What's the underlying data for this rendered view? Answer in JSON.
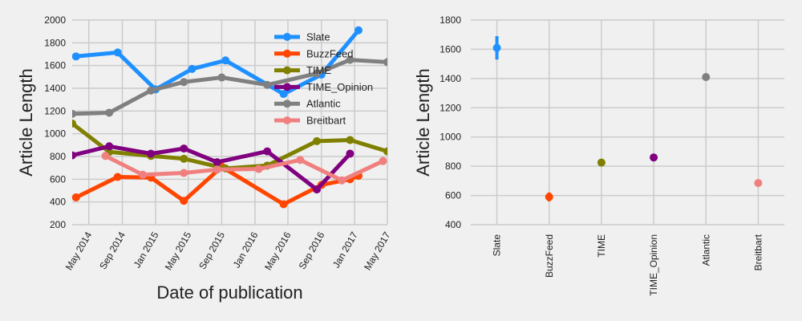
{
  "chart_data": [
    {
      "type": "line",
      "title": "",
      "xlabel": "Date of publication",
      "ylabel": "Article Length",
      "ylim": [
        200,
        2000
      ],
      "xlim": [
        "2014-03-01",
        "2017-05-01"
      ],
      "x_tick_labels": [
        "May 2014",
        "Sep 2014",
        "Jan 2015",
        "May 2015",
        "Sep 2015",
        "Jan 2016",
        "May 2016",
        "Sep 2016",
        "Jan 2017",
        "May 2017"
      ],
      "x_tick_dates": [
        "2014-05-01",
        "2014-09-01",
        "2015-01-01",
        "2015-05-01",
        "2015-09-01",
        "2016-01-01",
        "2016-05-01",
        "2016-09-01",
        "2017-01-01",
        "2017-05-01"
      ],
      "y_ticks": [
        200,
        400,
        600,
        800,
        1000,
        1200,
        1400,
        1600,
        1800,
        2000
      ],
      "grid": true,
      "legend_position": "top-right",
      "series": [
        {
          "name": "Slate",
          "color": "#1e90ff",
          "markers": true,
          "x": [
            "2014-03-15",
            "2014-08-15",
            "2015-01-01",
            "2015-05-15",
            "2015-09-15",
            "2016-04-15",
            "2016-09-01",
            "2017-01-15"
          ],
          "y": [
            1680,
            1715,
            1390,
            1570,
            1645,
            1350,
            1520,
            1910
          ]
        },
        {
          "name": "BuzzFeed",
          "color": "#ff4500",
          "markers": true,
          "x": [
            "2014-03-15",
            "2014-08-15",
            "2014-12-15",
            "2015-04-15",
            "2015-09-01",
            "2016-04-15",
            "2016-09-01",
            "2016-12-15",
            "2017-01-15"
          ],
          "y": [
            440,
            620,
            615,
            410,
            710,
            380,
            550,
            600,
            630
          ]
        },
        {
          "name": "TIME",
          "color": "#808000",
          "markers": true,
          "x": [
            "2014-03-01",
            "2014-07-15",
            "2014-12-15",
            "2015-04-15",
            "2015-09-15",
            "2016-02-15",
            "2016-08-15",
            "2016-12-15",
            "2017-05-01"
          ],
          "y": [
            1090,
            840,
            805,
            780,
            695,
            720,
            935,
            945,
            845
          ]
        },
        {
          "name": "TIME_Opinion",
          "color": "#800080",
          "markers": true,
          "x": [
            "2014-03-01",
            "2014-07-15",
            "2014-12-15",
            "2015-04-15",
            "2015-08-15",
            "2016-02-15",
            "2016-08-15",
            "2016-12-15"
          ],
          "y": [
            810,
            890,
            825,
            870,
            750,
            845,
            510,
            825
          ]
        },
        {
          "name": "Atlantic",
          "color": "#808080",
          "markers": true,
          "x": [
            "2014-03-01",
            "2014-07-15",
            "2014-12-15",
            "2015-04-15",
            "2015-09-01",
            "2016-02-15",
            "2016-08-15",
            "2016-12-15",
            "2017-05-01"
          ],
          "y": [
            1175,
            1185,
            1380,
            1455,
            1495,
            1430,
            1530,
            1650,
            1630
          ]
        },
        {
          "name": "Breitbart",
          "color": "#f08080",
          "markers": true,
          "x": [
            "2014-07-01",
            "2014-11-15",
            "2015-04-15",
            "2015-08-15",
            "2016-01-15",
            "2016-06-15",
            "2016-11-15",
            "2017-04-15"
          ],
          "y": [
            805,
            640,
            655,
            685,
            690,
            770,
            590,
            760
          ]
        }
      ]
    },
    {
      "type": "scatter",
      "title": "",
      "xlabel": "",
      "ylabel": "Article Length",
      "ylim": [
        400,
        1800
      ],
      "y_ticks": [
        400,
        600,
        800,
        1000,
        1200,
        1400,
        1600,
        1800
      ],
      "grid": true,
      "categories": [
        "Slate",
        "BuzzFeed",
        "TIME",
        "TIME_Opinion",
        "Atlantic",
        "Breitbart"
      ],
      "values": [
        1610,
        590,
        825,
        860,
        1410,
        685
      ],
      "errors": [
        80,
        30,
        5,
        5,
        22,
        5
      ],
      "colors": [
        "#1e90ff",
        "#ff4500",
        "#808000",
        "#800080",
        "#808080",
        "#f08080"
      ]
    }
  ]
}
